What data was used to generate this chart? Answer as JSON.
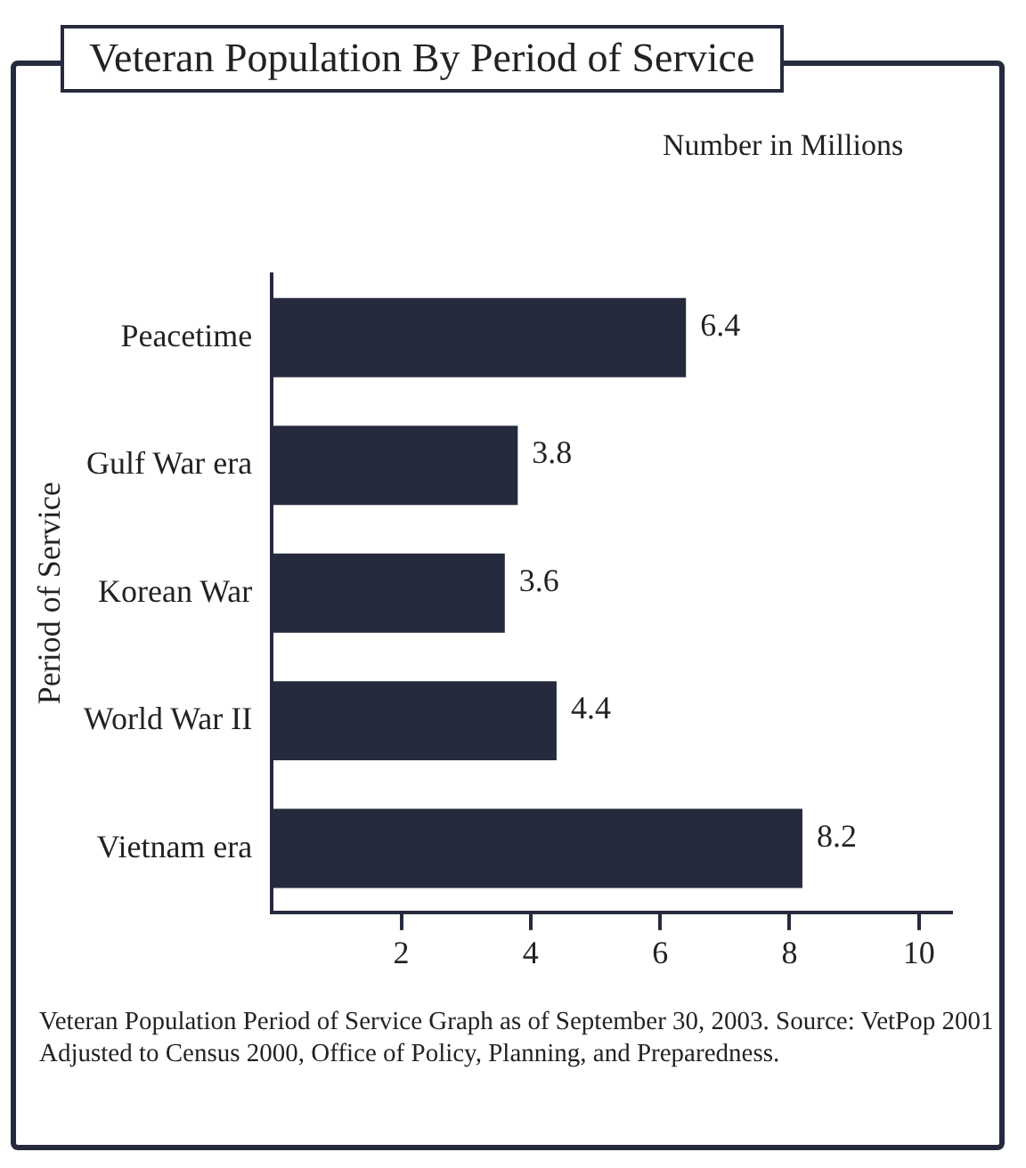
{
  "chart_data": {
    "type": "bar",
    "orientation": "horizontal",
    "title": "Veteran Population By Period of Service",
    "subtitle": "Number in Millions",
    "ylabel": "Period of Service",
    "categories": [
      "Peacetime",
      "Gulf War era",
      "Korean War",
      "World War II",
      "Vietnam era"
    ],
    "values": [
      6.4,
      3.8,
      3.6,
      4.4,
      8.2
    ],
    "color": "#262a3d",
    "xlim": [
      0,
      10.5
    ],
    "xticks": [
      2,
      4,
      6,
      8,
      10
    ],
    "grid": false,
    "legend": false,
    "data_labels": true,
    "annotations": [
      "Veteran Population Period of Service Graph as of September 30, 2003. Source: VetPop 2001 Adjusted to Census 2000, Office of Policy, Planning, and Preparedness."
    ]
  }
}
